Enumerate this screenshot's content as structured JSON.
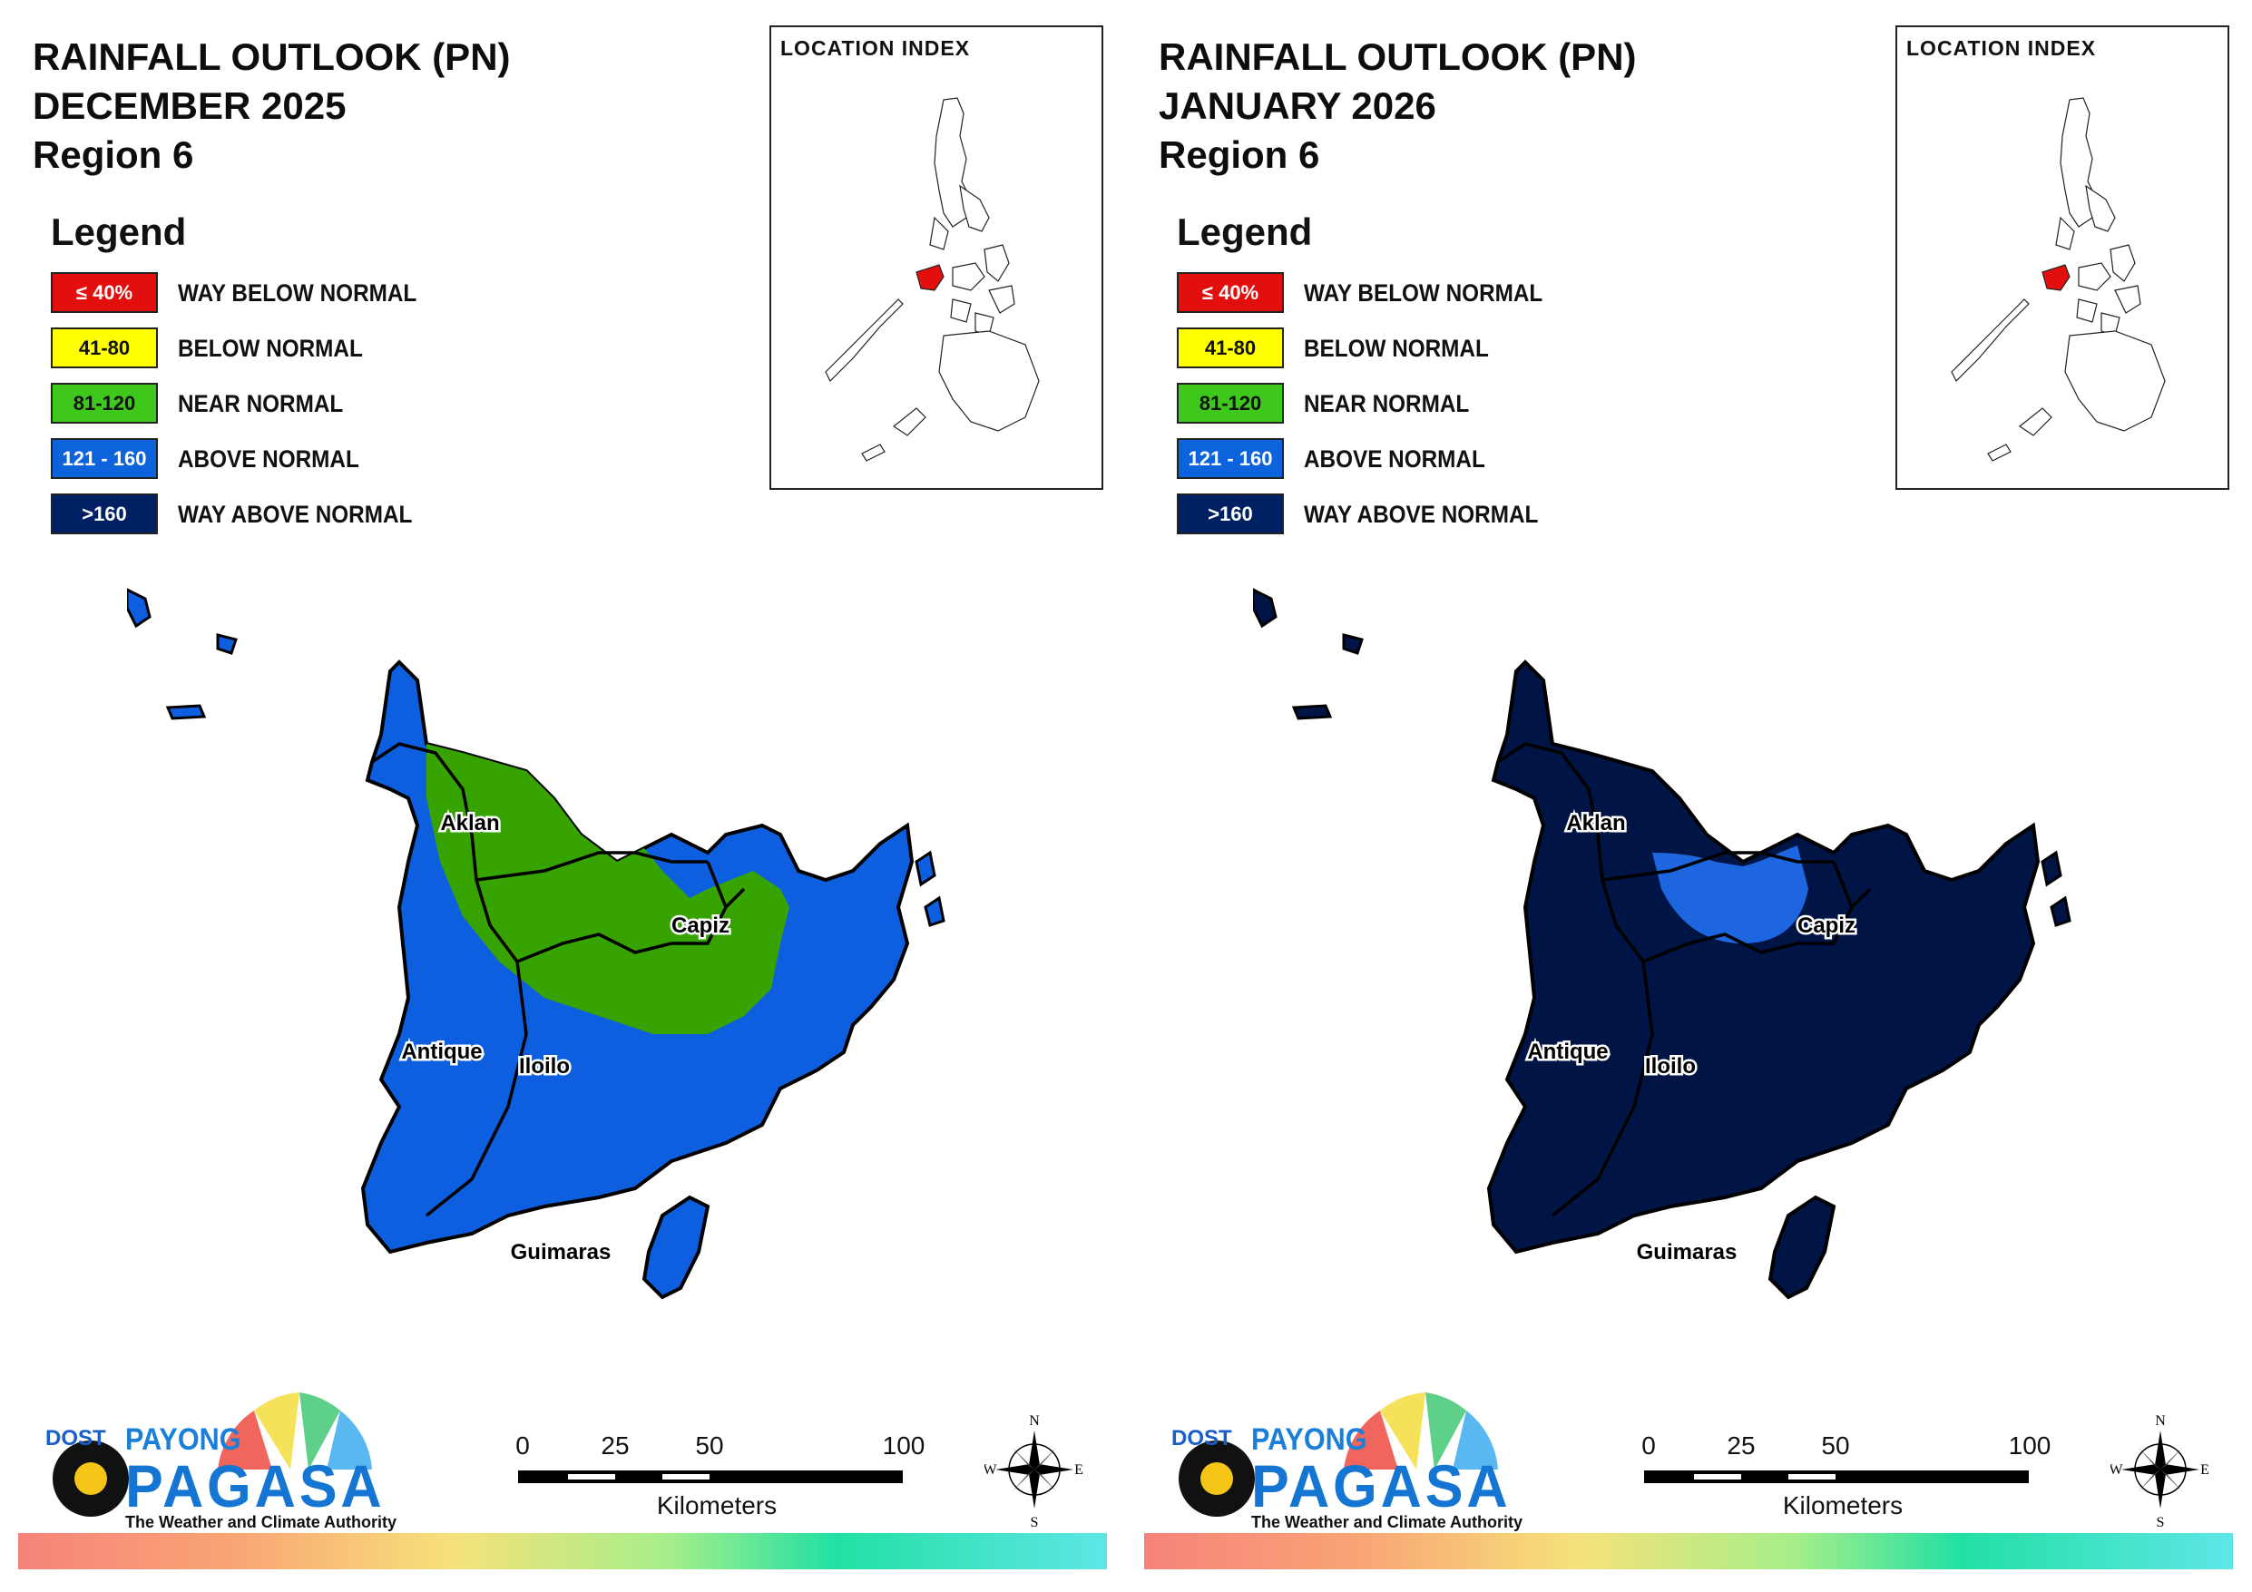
{
  "panels": [
    {
      "title_line1": "RAINFALL OUTLOOK (PN)",
      "title_line2": "DECEMBER 2025",
      "title_line3": "Region 6",
      "legend_title": "Legend",
      "legend": [
        {
          "range": "≤ 40%",
          "label": "WAY BELOW NORMAL",
          "color": "#e30f0f",
          "text_color": "#ffffff"
        },
        {
          "range": "41-80",
          "label": "BELOW NORMAL",
          "color": "#ffff00",
          "text_color": "#111111"
        },
        {
          "range": "81-120",
          "label": "NEAR NORMAL",
          "color": "#3fc81c",
          "text_color": "#111111"
        },
        {
          "range": "121 - 160",
          "label": "ABOVE NORMAL",
          "color": "#0d63dc",
          "text_color": "#ffffff"
        },
        {
          "range": ">160",
          "label": "WAY ABOVE NORMAL",
          "color": "#002064",
          "text_color": "#ffffff"
        }
      ],
      "index_title": "LOCATION INDEX",
      "provinces": {
        "aklan": "Aklan",
        "capiz": "Capiz",
        "antique": "Antique",
        "iloilo": "Iloilo",
        "guimaras": "Guimaras"
      },
      "map_colors": {
        "base": "#0d5fe0",
        "overlay": "#36a300",
        "overlay_label": "NEAR NORMAL",
        "base_label": "ABOVE NORMAL"
      }
    },
    {
      "title_line1": "RAINFALL OUTLOOK (PN)",
      "title_line2": "JANUARY 2026",
      "title_line3": "Region 6",
      "legend_title": "Legend",
      "legend": [
        {
          "range": "≤ 40%",
          "label": "WAY BELOW NORMAL",
          "color": "#e30f0f",
          "text_color": "#ffffff"
        },
        {
          "range": "41-80",
          "label": "BELOW NORMAL",
          "color": "#ffff00",
          "text_color": "#111111"
        },
        {
          "range": "81-120",
          "label": "NEAR NORMAL",
          "color": "#3fc81c",
          "text_color": "#111111"
        },
        {
          "range": "121 - 160",
          "label": "ABOVE NORMAL",
          "color": "#0d63dc",
          "text_color": "#ffffff"
        },
        {
          "range": ">160",
          "label": "WAY ABOVE NORMAL",
          "color": "#002064",
          "text_color": "#ffffff"
        }
      ],
      "index_title": "LOCATION INDEX",
      "provinces": {
        "aklan": "Aklan",
        "capiz": "Capiz",
        "antique": "Antique",
        "iloilo": "Iloilo",
        "guimaras": "Guimaras"
      },
      "map_colors": {
        "base": "#001445",
        "overlay": "#1d66e0",
        "overlay_label": "ABOVE NORMAL",
        "base_label": "WAY ABOVE NORMAL"
      }
    }
  ],
  "logo": {
    "dost": "DOST",
    "payong": "PAYONG",
    "pagasa": "PAGASA",
    "tagline": "The Weather and Climate Authority"
  },
  "scale": {
    "ticks": [
      "0",
      "25",
      "50",
      "100"
    ],
    "units": "Kilometers"
  },
  "compass": {
    "n": "N",
    "s": "S",
    "e": "E",
    "w": "W"
  }
}
